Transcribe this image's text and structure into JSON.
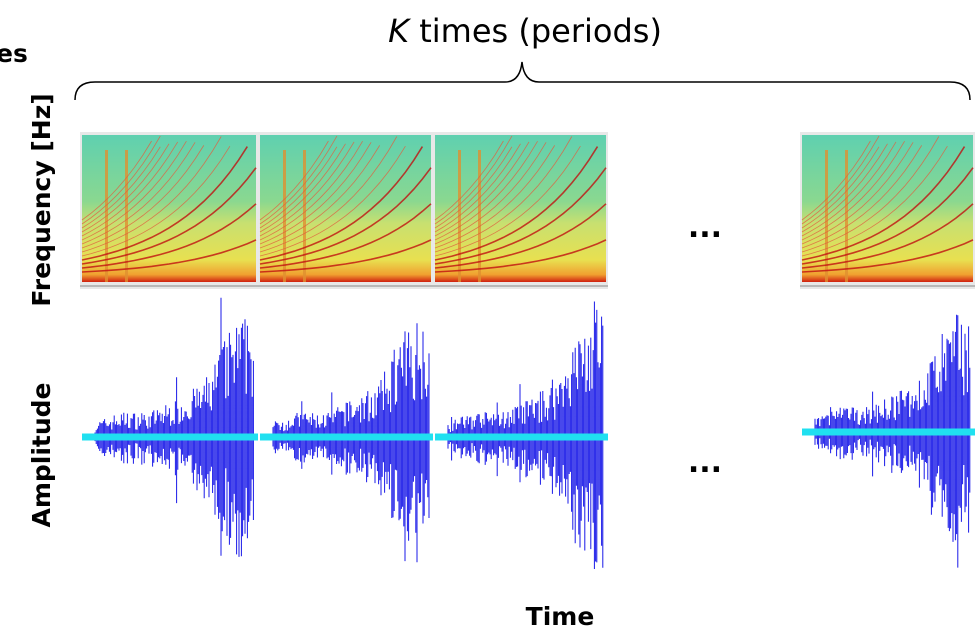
{
  "header": {
    "cropped_label": "es",
    "title": {
      "variable": "K",
      "text": " times (periods)"
    }
  },
  "axes": {
    "frequency_label": "Frequency [Hz]",
    "amplitude_label": "Amplitude",
    "time_label": "Time"
  },
  "ellipses": {
    "spectrogram": "...",
    "waveform": "..."
  }
}
